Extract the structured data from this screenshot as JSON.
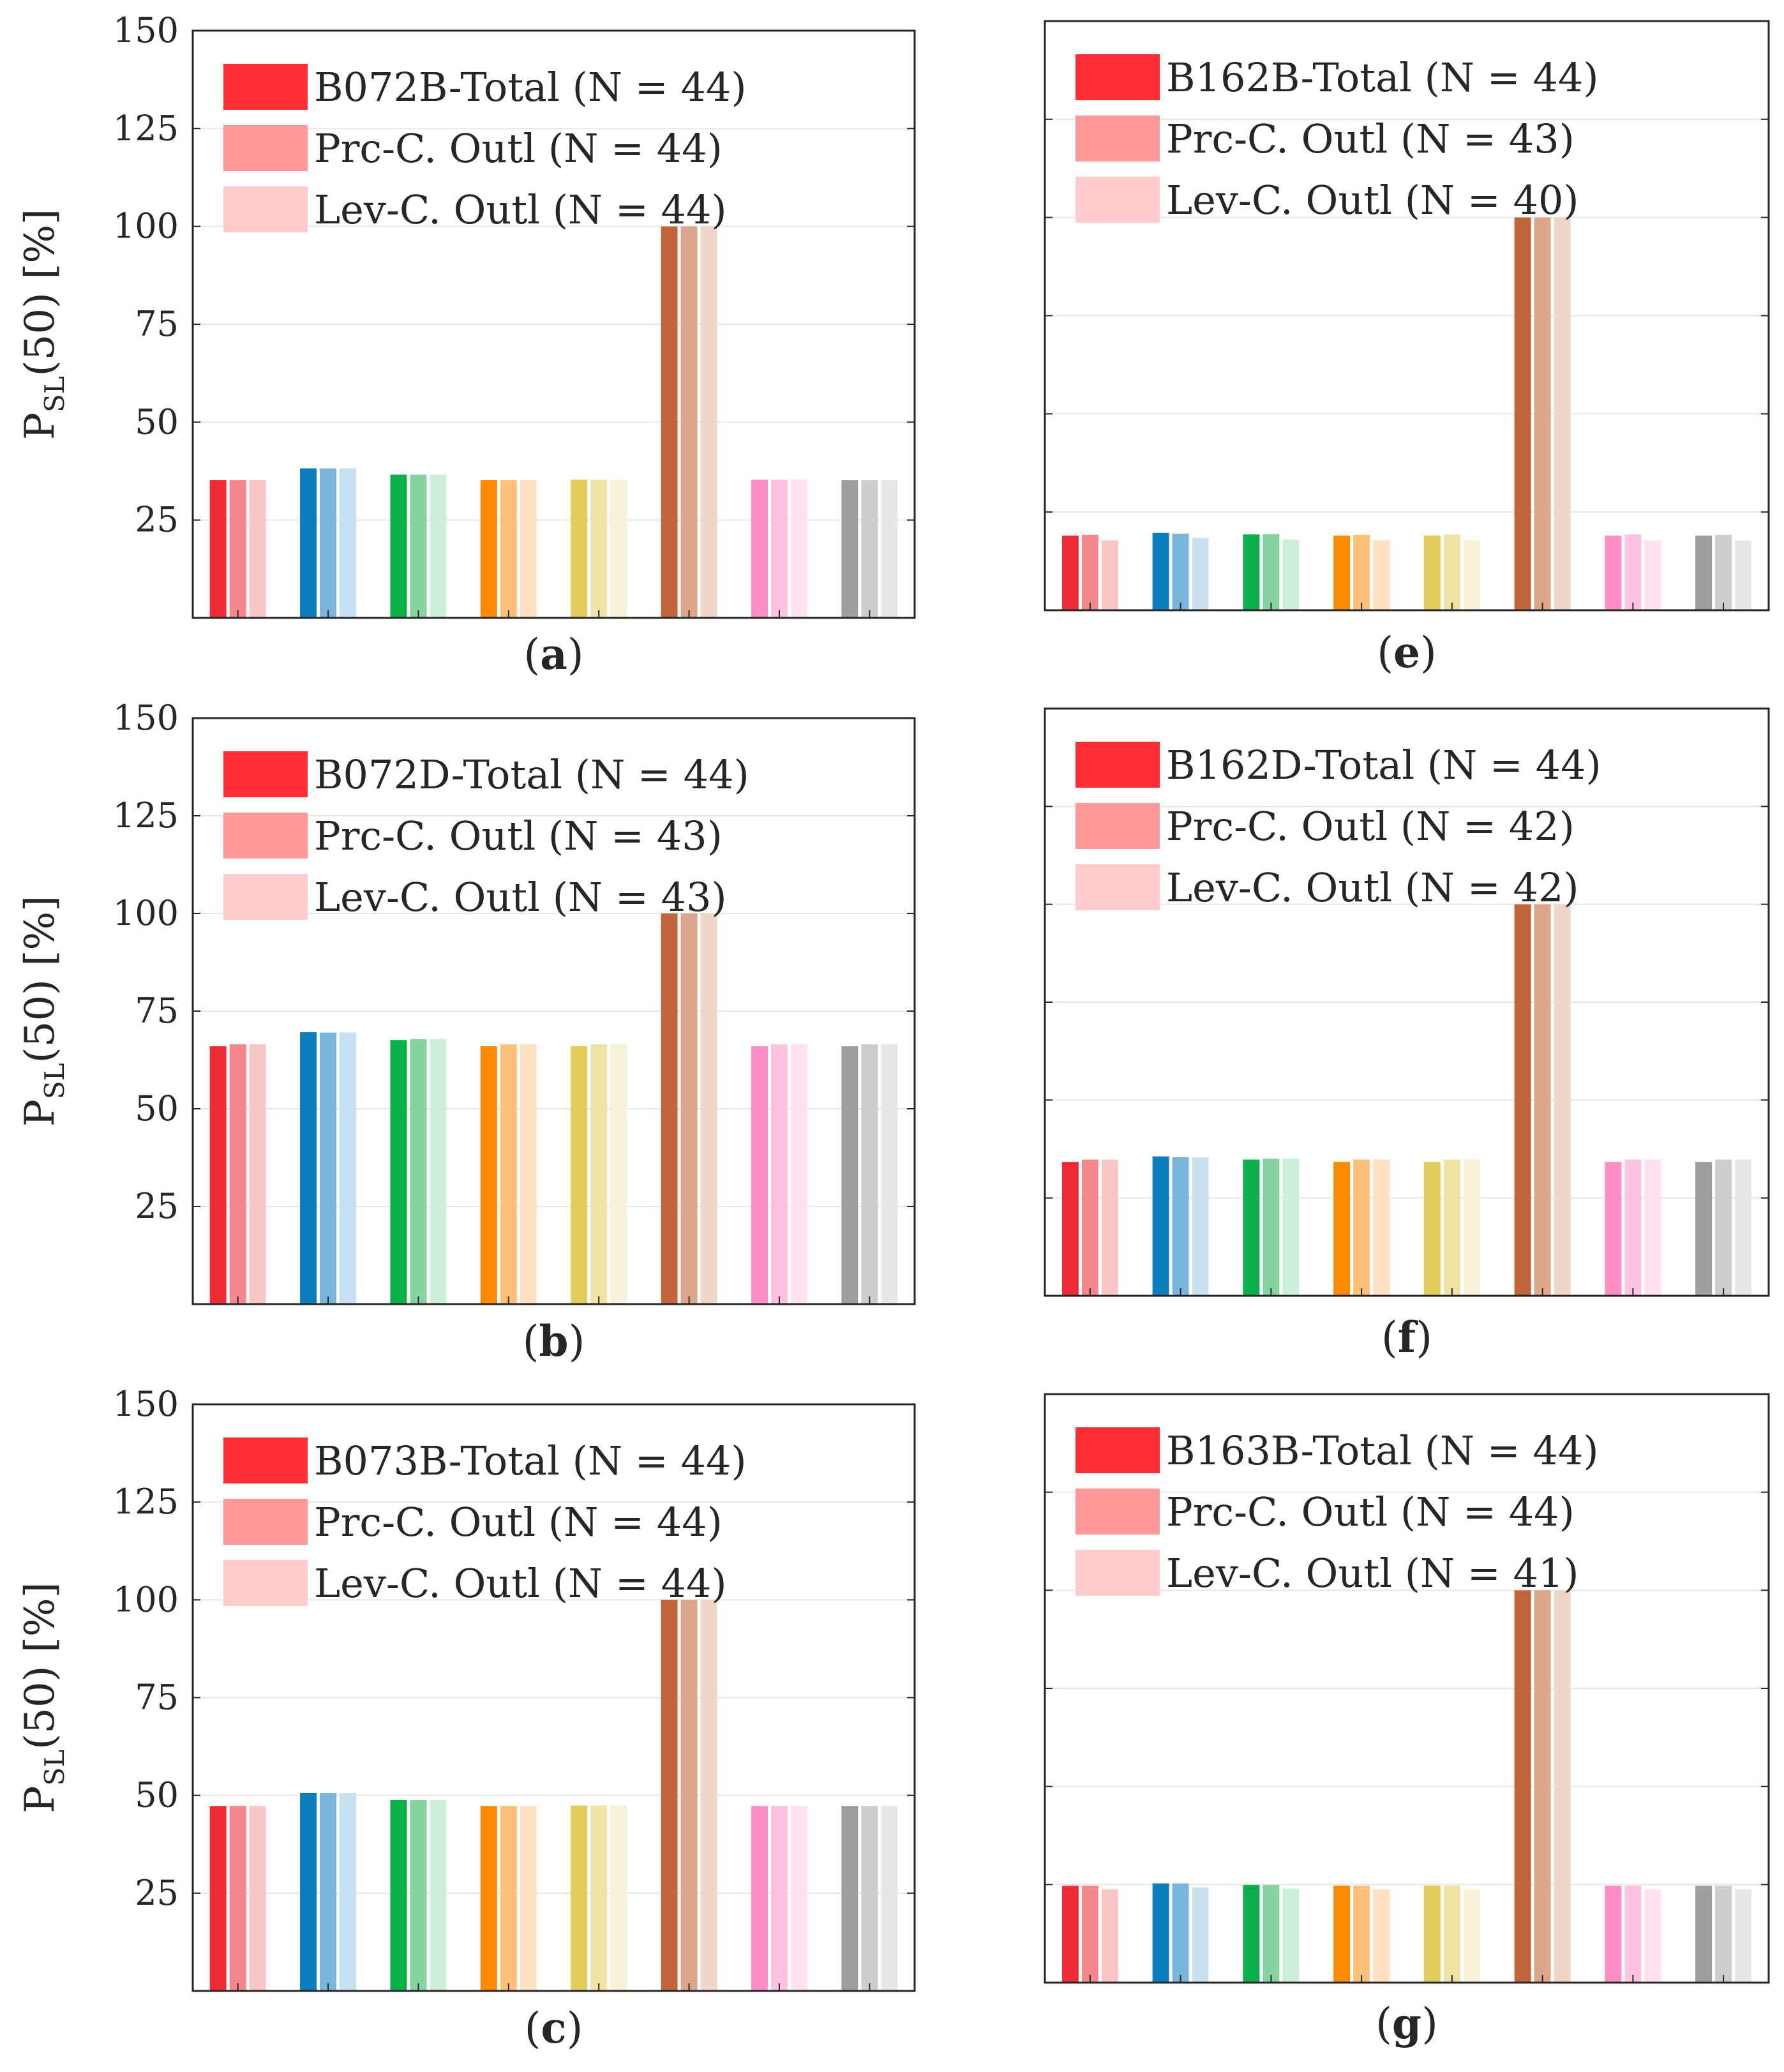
{
  "figure": {
    "ylabel_main": "P",
    "ylabel_sub": "SL",
    "ylabel_rest": "(50) [%]"
  },
  "group_colors": [
    [
      "#ef2b36",
      "#f4878c",
      "#f9c6c8"
    ],
    [
      "#0c7dbd",
      "#7ab6dc",
      "#c8e1f1"
    ],
    [
      "#0cb04a",
      "#86d39f",
      "#cdeed8"
    ],
    [
      "#ff8a00",
      "#ffc07a",
      "#ffe0c2"
    ],
    [
      "#e2cc5b",
      "#efe4a6",
      "#f7f1d8"
    ],
    [
      "#c0643a",
      "#dda58a",
      "#efd6c9"
    ],
    [
      "#ff8ec7",
      "#ffc3e2",
      "#ffe1f0"
    ],
    [
      "#9e9e9e",
      "#cdcdcd",
      "#e7e7e7"
    ]
  ],
  "legend_colors": [
    "#ff2d34",
    "#ff9898",
    "#ffcbcc"
  ],
  "chart_data": [
    {
      "id": "a",
      "caption_open": "(",
      "caption_label": "a",
      "caption_close": ")",
      "type": "bar",
      "ylim": [
        0,
        150
      ],
      "yticks": [
        "25",
        "50",
        "75",
        "100",
        "125",
        "150"
      ],
      "show_ytick_labels": true,
      "grid": true,
      "legend": [
        "B072B-Total (N = 44)",
        "Prc-C. Outl (N = 44)",
        "Lev-C. Outl (N = 44)"
      ],
      "series": [
        {
          "name": "B072B-Total (N = 44)",
          "values": [
            35.2,
            38.2,
            36.6,
            35.2,
            35.3,
            100,
            35.3,
            35.2
          ]
        },
        {
          "name": "Prc-C. Outl (N = 44)",
          "values": [
            35.2,
            38.2,
            36.6,
            35.2,
            35.3,
            100,
            35.3,
            35.2
          ]
        },
        {
          "name": "Lev-C. Outl (N = 44)",
          "values": [
            35.2,
            38.2,
            36.6,
            35.2,
            35.3,
            100,
            35.3,
            35.2
          ]
        }
      ]
    },
    {
      "id": "b",
      "caption_open": "(",
      "caption_label": "b",
      "caption_close": ")",
      "type": "bar",
      "ylim": [
        0,
        150
      ],
      "yticks": [
        "25",
        "50",
        "75",
        "100",
        "125",
        "150"
      ],
      "show_ytick_labels": true,
      "grid": true,
      "legend": [
        "B072D-Total (N = 44)",
        "Prc-C. Outl (N = 43)",
        "Lev-C. Outl (N = 43)"
      ],
      "series": [
        {
          "name": "B072D-Total (N = 44)",
          "values": [
            66,
            69.6,
            67.6,
            66,
            66,
            100,
            66,
            66
          ]
        },
        {
          "name": "Prc-C. Outl (N = 43)",
          "values": [
            66.5,
            69.5,
            67.8,
            66.5,
            66.5,
            100,
            66.5,
            66.5
          ]
        },
        {
          "name": "Lev-C. Outl (N = 43)",
          "values": [
            66.5,
            69.5,
            67.8,
            66.5,
            66.5,
            100,
            66.5,
            66.5
          ]
        }
      ]
    },
    {
      "id": "c",
      "caption_open": "(",
      "caption_label": "c",
      "caption_close": ")",
      "type": "bar",
      "ylim": [
        0,
        150
      ],
      "yticks": [
        "25",
        "50",
        "75",
        "100",
        "125",
        "150"
      ],
      "show_ytick_labels": true,
      "grid": true,
      "legend": [
        "B073B-Total (N = 44)",
        "Prc-C. Outl (N = 44)",
        "Lev-C. Outl (N = 44)"
      ],
      "series": [
        {
          "name": "B073B-Total (N = 44)",
          "values": [
            47.3,
            50.6,
            48.8,
            47.3,
            47.4,
            100,
            47.3,
            47.3
          ]
        },
        {
          "name": "Prc-C. Outl (N = 44)",
          "values": [
            47.3,
            50.6,
            48.8,
            47.3,
            47.4,
            100,
            47.3,
            47.3
          ]
        },
        {
          "name": "Lev-C. Outl (N = 44)",
          "values": [
            47.3,
            50.6,
            48.8,
            47.3,
            47.4,
            100,
            47.3,
            47.3
          ]
        }
      ]
    },
    {
      "id": "e",
      "caption_open": "(",
      "caption_label": "e",
      "caption_close": ")",
      "type": "bar",
      "ylim": [
        0,
        150
      ],
      "yticks": [
        "25",
        "50",
        "75",
        "100",
        "125",
        "150"
      ],
      "show_ytick_labels": false,
      "grid": true,
      "legend": [
        "B162B-Total (N = 44)",
        "Prc-C. Outl (N = 43)",
        "Lev-C. Outl (N = 40)"
      ],
      "series": [
        {
          "name": "B162B-Total (N = 44)",
          "values": [
            19,
            19.7,
            19.3,
            19,
            19,
            100,
            19,
            19
          ]
        },
        {
          "name": "Prc-C. Outl (N = 43)",
          "values": [
            19.2,
            19.5,
            19.4,
            19.2,
            19.3,
            100,
            19.3,
            19.2
          ]
        },
        {
          "name": "Lev-C. Outl (N = 40)",
          "values": [
            17.8,
            18.4,
            18,
            17.8,
            17.8,
            100,
            17.8,
            17.8
          ]
        }
      ]
    },
    {
      "id": "f",
      "caption_open": "(",
      "caption_label": "f",
      "caption_close": ")",
      "type": "bar",
      "ylim": [
        0,
        150
      ],
      "yticks": [
        "25",
        "50",
        "75",
        "100",
        "125",
        "150"
      ],
      "show_ytick_labels": false,
      "grid": true,
      "legend": [
        "B162D-Total (N = 44)",
        "Prc-C. Outl (N = 42)",
        "Lev-C. Outl (N = 42)"
      ],
      "series": [
        {
          "name": "B162D-Total (N = 44)",
          "values": [
            34.2,
            35.6,
            34.8,
            34.2,
            34.2,
            100,
            34.2,
            34.2
          ]
        },
        {
          "name": "Prc-C. Outl (N = 42)",
          "values": [
            34.8,
            35.4,
            35,
            34.8,
            34.8,
            100,
            34.8,
            34.8
          ]
        },
        {
          "name": "Lev-C. Outl (N = 42)",
          "values": [
            34.8,
            35.4,
            35,
            34.8,
            34.8,
            100,
            34.8,
            34.8
          ]
        }
      ]
    },
    {
      "id": "g",
      "caption_open": "(",
      "caption_label": "g",
      "caption_close": ")",
      "type": "bar",
      "ylim": [
        0,
        150
      ],
      "yticks": [
        "25",
        "50",
        "75",
        "100",
        "125",
        "150"
      ],
      "show_ytick_labels": false,
      "grid": true,
      "legend": [
        "B163B-Total (N = 44)",
        "Prc-C. Outl (N = 44)",
        "Lev-C. Outl (N = 41)"
      ],
      "series": [
        {
          "name": "B163B-Total (N = 44)",
          "values": [
            24.7,
            25.3,
            24.9,
            24.7,
            24.7,
            100,
            24.7,
            24.7
          ]
        },
        {
          "name": "Prc-C. Outl (N = 44)",
          "values": [
            24.7,
            25.3,
            24.9,
            24.7,
            24.7,
            100,
            24.7,
            24.7
          ]
        },
        {
          "name": "Lev-C. Outl (N = 41)",
          "values": [
            23.8,
            24.3,
            24,
            23.8,
            23.8,
            100,
            23.8,
            23.8
          ]
        }
      ]
    }
  ]
}
